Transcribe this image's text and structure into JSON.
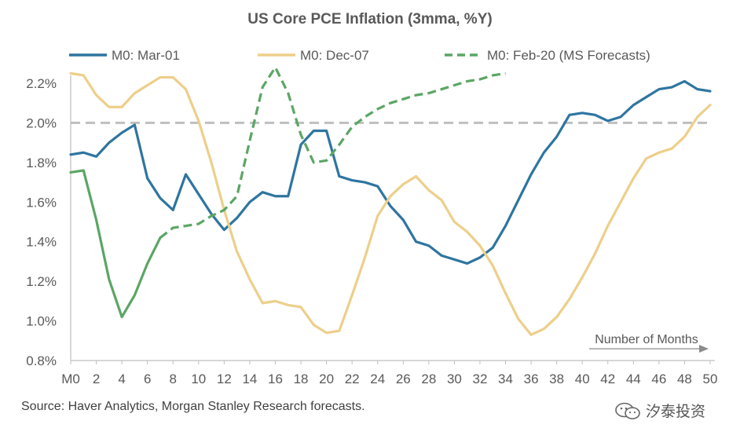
{
  "chart_data": {
    "type": "line",
    "title": "US Core PCE Inflation (3mma, %Y)",
    "xlabel": "",
    "ylabel": "",
    "annotation": "Number of Months",
    "xlim": [
      0,
      50
    ],
    "ylim": [
      0.8,
      2.3
    ],
    "y_ticks": [
      0.8,
      1.0,
      1.2,
      1.4,
      1.6,
      1.8,
      2.0,
      2.2
    ],
    "y_tick_labels": [
      "0.8%",
      "1.0%",
      "1.2%",
      "1.4%",
      "1.6%",
      "1.8%",
      "2.0%",
      "2.2%"
    ],
    "x_ticks": [
      0,
      2,
      4,
      6,
      8,
      10,
      12,
      14,
      16,
      18,
      20,
      22,
      24,
      26,
      28,
      30,
      32,
      34,
      36,
      38,
      40,
      42,
      44,
      46,
      48,
      50
    ],
    "x_tick_labels": [
      "M0",
      "2",
      "4",
      "6",
      "8",
      "10",
      "12",
      "14",
      "16",
      "18",
      "20",
      "22",
      "24",
      "26",
      "28",
      "30",
      "32",
      "34",
      "36",
      "38",
      "40",
      "42",
      "44",
      "46",
      "48",
      "50"
    ],
    "reference_line": 2.0,
    "legend_position": "top",
    "series": [
      {
        "name": "M0: Mar-01",
        "color": "#2E75A0",
        "dash": "solid",
        "x": [
          0,
          1,
          2,
          3,
          4,
          5,
          6,
          7,
          8,
          9,
          10,
          11,
          12,
          13,
          14,
          15,
          16,
          17,
          18,
          19,
          20,
          21,
          22,
          23,
          24,
          25,
          26,
          27,
          28,
          29,
          30,
          31,
          32,
          33,
          34,
          35,
          36,
          37,
          38,
          39,
          40,
          41,
          42,
          43,
          44,
          45,
          46,
          47,
          48,
          49,
          50
        ],
        "values": [
          1.84,
          1.85,
          1.83,
          1.9,
          1.95,
          1.99,
          1.72,
          1.62,
          1.56,
          1.74,
          1.64,
          1.54,
          1.46,
          1.52,
          1.6,
          1.65,
          1.63,
          1.63,
          1.89,
          1.96,
          1.96,
          1.73,
          1.71,
          1.7,
          1.68,
          1.58,
          1.51,
          1.4,
          1.38,
          1.33,
          1.31,
          1.29,
          1.32,
          1.37,
          1.48,
          1.61,
          1.74,
          1.85,
          1.93,
          2.04,
          2.05,
          2.04,
          2.01,
          2.03,
          2.09,
          2.13,
          2.17,
          2.18,
          2.21,
          2.17,
          2.16
        ]
      },
      {
        "name": "M0: Dec-07",
        "color": "#EDCF8A",
        "dash": "solid",
        "x": [
          0,
          1,
          2,
          3,
          4,
          5,
          6,
          7,
          8,
          9,
          10,
          11,
          12,
          13,
          14,
          15,
          16,
          17,
          18,
          19,
          20,
          21,
          22,
          23,
          24,
          25,
          26,
          27,
          28,
          29,
          30,
          31,
          32,
          33,
          34,
          35,
          36,
          37,
          38,
          39,
          40,
          41,
          42,
          43,
          44,
          45,
          46,
          47,
          48,
          49,
          50
        ],
        "values": [
          2.25,
          2.24,
          2.14,
          2.08,
          2.08,
          2.15,
          2.19,
          2.23,
          2.23,
          2.17,
          2.01,
          1.8,
          1.56,
          1.35,
          1.21,
          1.09,
          1.1,
          1.08,
          1.07,
          0.98,
          0.94,
          0.95,
          1.13,
          1.32,
          1.53,
          1.63,
          1.69,
          1.73,
          1.66,
          1.61,
          1.5,
          1.45,
          1.38,
          1.28,
          1.14,
          1.01,
          0.93,
          0.96,
          1.02,
          1.11,
          1.22,
          1.34,
          1.48,
          1.6,
          1.72,
          1.82,
          1.85,
          1.87,
          1.93,
          2.03,
          2.09
        ]
      },
      {
        "name": "M0: Feb-20 (MS Forecasts)",
        "color": "#5BA664",
        "dash": "solid-then-dashed",
        "x": [
          0,
          1,
          2,
          3,
          4,
          5,
          6,
          7,
          8,
          9,
          10,
          11,
          12,
          13,
          14,
          15,
          16,
          17,
          18,
          19,
          20,
          21,
          22,
          23,
          24,
          25,
          26,
          27,
          28,
          29,
          30,
          31,
          32,
          33,
          34
        ],
        "values": [
          1.75,
          1.76,
          1.51,
          1.21,
          1.02,
          1.13,
          1.29,
          1.42,
          1.47,
          1.48,
          1.49,
          1.53,
          1.56,
          1.63,
          1.91,
          2.18,
          2.28,
          2.15,
          1.94,
          1.8,
          1.81,
          1.89,
          1.98,
          2.03,
          2.07,
          2.1,
          2.12,
          2.14,
          2.15,
          2.17,
          2.19,
          2.21,
          2.22,
          2.24,
          2.25
        ],
        "actual_until_x": 7
      }
    ]
  },
  "source": "Source: Haver Analytics, Morgan Stanley Research forecasts.",
  "watermark": "汐泰投资"
}
